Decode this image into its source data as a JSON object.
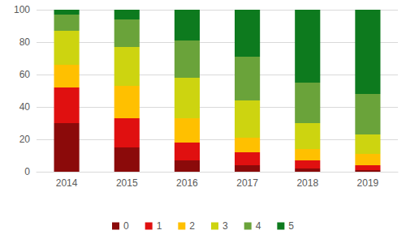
{
  "chart_data": {
    "type": "bar",
    "stacked": true,
    "grid": true,
    "legend": "bottom",
    "categories": [
      "2014",
      "2015",
      "2016",
      "2017",
      "2018",
      "2019"
    ],
    "ylim": [
      0,
      100
    ],
    "yticks": [
      0,
      20,
      40,
      60,
      80,
      100
    ],
    "series": [
      {
        "name": "0",
        "color": "#8b0a0a",
        "values": [
          30,
          15,
          7,
          4,
          2,
          1
        ]
      },
      {
        "name": "1",
        "color": "#e01010",
        "values": [
          22,
          18,
          11,
          8,
          5,
          3
        ]
      },
      {
        "name": "2",
        "color": "#ffc000",
        "values": [
          14,
          20,
          15,
          9,
          7,
          7
        ]
      },
      {
        "name": "3",
        "color": "#cdd410",
        "values": [
          21,
          24,
          25,
          23,
          16,
          12
        ]
      },
      {
        "name": "4",
        "color": "#6aa33a",
        "values": [
          10,
          17,
          23,
          27,
          25,
          25
        ]
      },
      {
        "name": "5",
        "color": "#0d7a1e",
        "values": [
          3,
          6,
          19,
          29,
          45,
          52
        ]
      }
    ]
  }
}
